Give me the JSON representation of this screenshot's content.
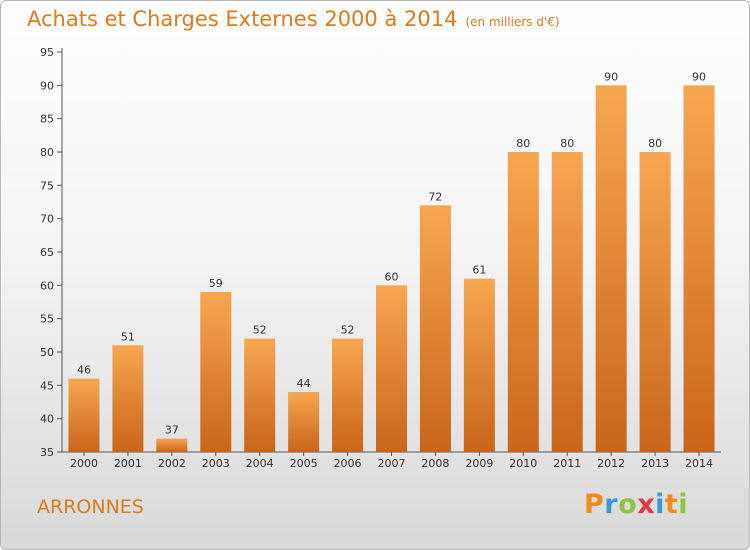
{
  "title": "Achats et Charges Externes 2000 à 2014",
  "unit": "(en milliers d'€)",
  "place": "ARRONNES",
  "brand": {
    "letters": [
      "P",
      "r",
      "o",
      "x",
      "i",
      "t",
      "i"
    ],
    "colors": [
      "#f28c1b",
      "#3a9ad9",
      "#8cc63f",
      "#e03a3a",
      "#3a9ad9",
      "#f28c1b",
      "#8cc63f"
    ]
  },
  "colors": {
    "bar_top": "#f7a650",
    "bar_bottom": "#c9651a",
    "title": "#e07a1c"
  },
  "chart_data": {
    "type": "bar",
    "categories": [
      "2000",
      "2001",
      "2002",
      "2003",
      "2004",
      "2005",
      "2006",
      "2007",
      "2008",
      "2009",
      "2010",
      "2011",
      "2012",
      "2013",
      "2014"
    ],
    "values": [
      46,
      51,
      37,
      59,
      52,
      44,
      52,
      60,
      72,
      61,
      80,
      80,
      90,
      80,
      90
    ],
    "ylim": [
      35,
      95
    ],
    "yticks": [
      35,
      40,
      45,
      50,
      55,
      60,
      65,
      70,
      75,
      80,
      85,
      90,
      95
    ],
    "grid": false
  }
}
